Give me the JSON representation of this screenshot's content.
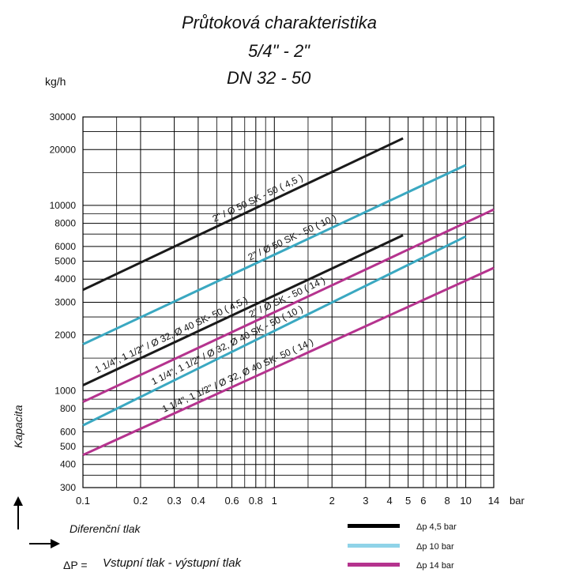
{
  "title": [
    "Průtoková charakteristika",
    "5/4\" - 2\"",
    "DN 32 - 50"
  ],
  "chart_data": {
    "type": "line",
    "xscale": "log",
    "yscale": "log",
    "xlim": [
      0.1,
      14
    ],
    "ylim": [
      300,
      30000
    ],
    "x_ticks": [
      0.1,
      0.2,
      0.3,
      0.4,
      0.6,
      0.8,
      1,
      2,
      3,
      4,
      5,
      6,
      8,
      10,
      14
    ],
    "x_tick_labels": [
      "0.1",
      "0.2",
      "0.3",
      "0.4",
      "0.6",
      "0.8",
      "1",
      "2",
      "3",
      "4",
      "5",
      "6",
      "8",
      "10",
      "14"
    ],
    "y_ticks": [
      300,
      400,
      500,
      600,
      800,
      1000,
      2000,
      3000,
      4000,
      5000,
      6000,
      8000,
      10000,
      20000,
      30000
    ],
    "y_tick_labels": [
      "300",
      "400",
      "500",
      "600",
      "800",
      "1000",
      "2000",
      "3000",
      "4000",
      "5000",
      "6000",
      "8000",
      "10000",
      "20000",
      "30000"
    ],
    "x_unit": "bar",
    "y_unit": "kg/h",
    "ylabel": "Kapacita",
    "xlabel": "Diferenční tlak",
    "grid": true,
    "series": [
      {
        "name": "2\" / Ø 50 SK - 50 ( 4,5 )",
        "color": "#1a1a1a",
        "x": [
          0.1,
          4.7
        ],
        "y": [
          3500,
          23000
        ]
      },
      {
        "name": "2\" / Ø 50 SK - 50 ( 10 )",
        "color": "#3aa8c1",
        "x": [
          0.1,
          10
        ],
        "y": [
          1780,
          16500
        ]
      },
      {
        "name": "1 1/4\", 1 1/2\" / Ø 32, Ø 40 SK- 50 ( 4,5 )",
        "color": "#1a1a1a",
        "x": [
          0.1,
          4.7
        ],
        "y": [
          1070,
          6900
        ]
      },
      {
        "name": "2\" / Ø SK - 50 ( 14 )",
        "color": "#b5338e",
        "x": [
          0.1,
          14
        ],
        "y": [
          870,
          9500
        ]
      },
      {
        "name": "1 1/4\", 1 1/2\" / Ø 32, Ø 40 SK - 50 ( 10 )",
        "color": "#3aa8c1",
        "x": [
          0.1,
          10
        ],
        "y": [
          650,
          6800
        ]
      },
      {
        "name": "1 1/4\", 1 1/2\" / Ø 32, Ø 40 SK- 50 ( 14 )",
        "color": "#b5338e",
        "x": [
          0.1,
          14
        ],
        "y": [
          450,
          4600
        ]
      }
    ],
    "legend": {
      "placement": "bottom-right",
      "items": [
        {
          "label": "Δp 4,5 bar",
          "color": "#000000"
        },
        {
          "label": "Δp 10 bar",
          "color": "#8fd3e8"
        },
        {
          "label": "Δp 14 bar",
          "color": "#b5338e"
        }
      ]
    },
    "footnote": {
      "symbol": "ΔP =",
      "text": "Vstupní tlak - výstupní tlak"
    }
  }
}
